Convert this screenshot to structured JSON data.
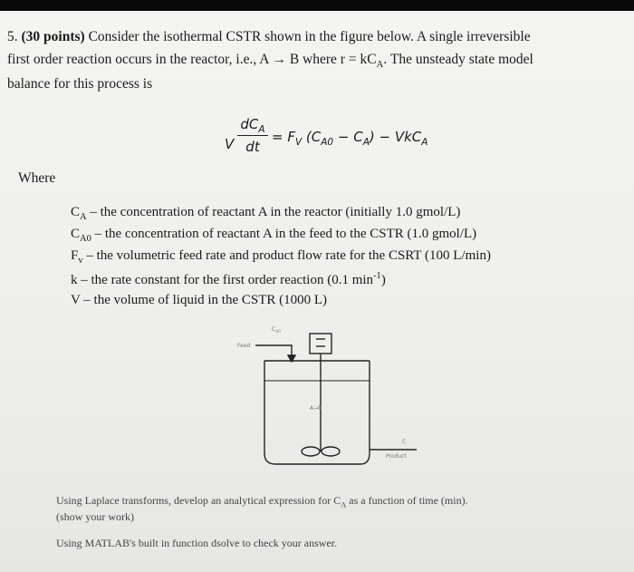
{
  "problem": {
    "number": "5.",
    "points": "(30 points)",
    "lines": [
      [
        "Consider the isothermal CSTR shown in the figure below.  A single irreversible"
      ],
      [
        "first order reaction occurs in the reactor, i.e., A → B where r = kC",
        {
          "sub": "A"
        },
        ".  The unsteady state model"
      ],
      [
        "balance for this process is"
      ]
    ]
  },
  "equation": {
    "lhs": [
      "V"
    ],
    "numerator": [
      "dC",
      {
        "sub": "A"
      }
    ],
    "denominator": [
      "dt"
    ],
    "rhs": [
      "= F",
      {
        "sub": "V"
      },
      " (C",
      {
        "sub": "A0"
      },
      " − C",
      {
        "sub": "A"
      },
      ") − VkC",
      {
        "sub": "A"
      }
    ]
  },
  "where_label": "Where",
  "definitions": [
    [
      "C",
      {
        "sub": "A"
      },
      " – the concentration of reactant A in the reactor (initially 1.0 gmol/L)"
    ],
    [
      "C",
      {
        "sub": "A0"
      },
      " – the concentration of reactant A in the feed to the CSTR (1.0 gmol/L)"
    ],
    [
      "F",
      {
        "sub": "v"
      },
      " – the volumetric feed rate and product flow rate for the CSRT (100 L/min)"
    ],
    [
      "k – the rate constant for the first order reaction (0.1 min",
      {
        "sup": "-1"
      },
      ")"
    ],
    [
      "V – the volume of liquid in the CSTR (1000 L)"
    ]
  ],
  "figure": {
    "feed_conc": [
      "C",
      {
        "sub": "A0"
      }
    ],
    "feed_label": "Feed",
    "reaction_label": "A→B",
    "outlet_conc": "C",
    "product_label": "Product"
  },
  "tasks": [
    [
      "Using Laplace transforms, develop an analytical expression for C",
      {
        "sub": "A"
      },
      " as a function of time (min)."
    ],
    [
      "(show your work)"
    ],
    [
      "Using MATLAB's built in function dsolve to check your answer."
    ]
  ]
}
